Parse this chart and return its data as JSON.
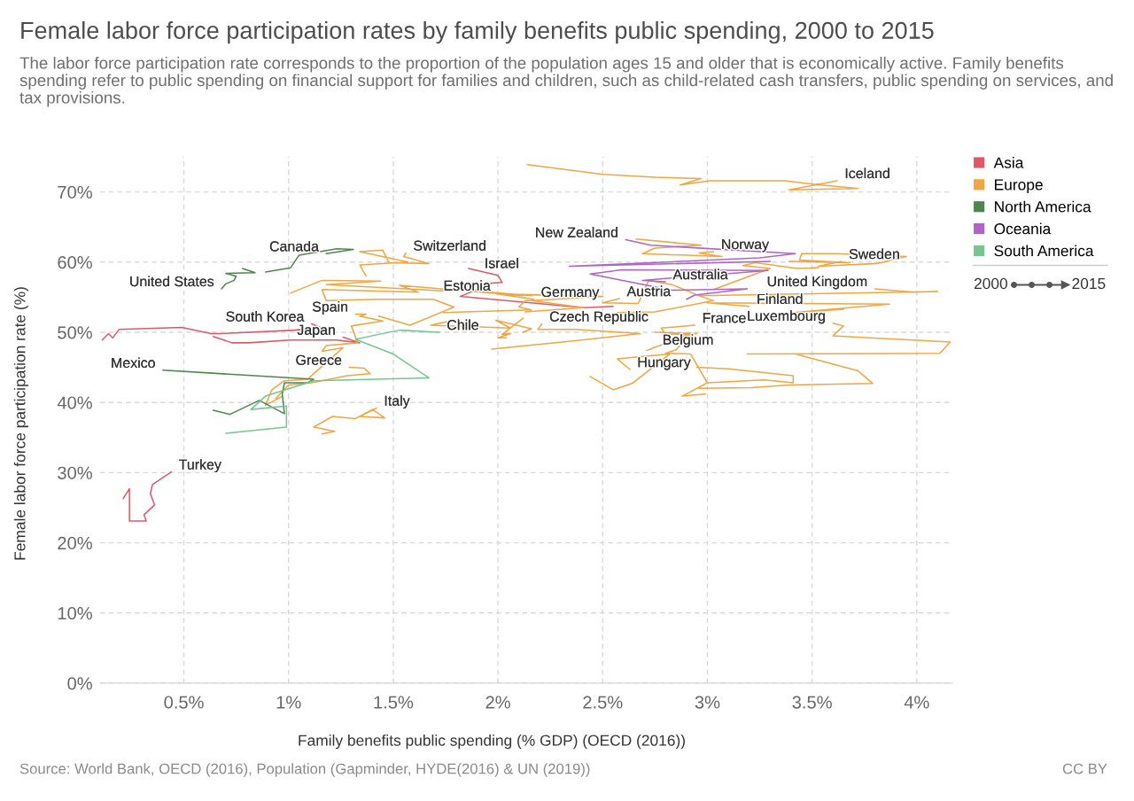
{
  "chart_data": {
    "type": "line",
    "title": "Female labor force participation rates by family benefits public spending, 2000 to 2015",
    "subtitle": "The labor force participation rate corresponds to the proportion of the population ages 15 and older that is economically active. Family benefits spending refer to public spending on financial support for families and children, such as child-related cash transfers, public spending on services, and tax provisions.",
    "xlabel": "Family benefits public spending (% GDP) (OECD (2016))",
    "ylabel": "Female labor force participation rate (%)",
    "xlim": [
      0.1,
      4.17
    ],
    "ylim": [
      0,
      75
    ],
    "xticks": [
      {
        "value": 0.5,
        "label": "0.5%"
      },
      {
        "value": 1,
        "label": "1%"
      },
      {
        "value": 1.5,
        "label": "1.5%"
      },
      {
        "value": 2,
        "label": "2%"
      },
      {
        "value": 2.5,
        "label": "2.5%"
      },
      {
        "value": 3,
        "label": "3%"
      },
      {
        "value": 3.5,
        "label": "3.5%"
      },
      {
        "value": 4,
        "label": "4%"
      }
    ],
    "yticks": [
      {
        "value": 0,
        "label": "0%"
      },
      {
        "value": 10,
        "label": "10%"
      },
      {
        "value": 20,
        "label": "20%"
      },
      {
        "value": 30,
        "label": "30%"
      },
      {
        "value": 40,
        "label": "40%"
      },
      {
        "value": 50,
        "label": "50%"
      },
      {
        "value": 60,
        "label": "60%"
      },
      {
        "value": 70,
        "label": "70%"
      }
    ],
    "grid": true,
    "legend": "top right",
    "series": [
      {
        "name": "Asia",
        "color": "#dc5a68",
        "x": [
          0.21,
          0.24,
          0.24,
          0.32,
          0.31,
          0.36,
          0.34,
          0.35,
          0.44,
          null,
          0.11,
          0.14,
          0.16,
          0.19,
          0.49,
          0.63,
          0.67,
          1.03,
          1.15,
          1.11,
          null,
          0.64,
          0.73,
          0.81,
          1.01,
          1.23,
          1.34,
          1.26,
          null,
          2.55,
          2.41,
          1.82,
          1.97,
          2.02,
          2.0,
          1.86,
          1.9
        ],
        "values": [
          26.3,
          27.7,
          23.1,
          23.1,
          24.0,
          25.4,
          27.0,
          28.3,
          30.1,
          null,
          48.9,
          49.8,
          49.2,
          50.4,
          50.7,
          49.8,
          49.8,
          50.3,
          50.7,
          51.2,
          null,
          49.4,
          48.5,
          48.5,
          48.9,
          48.9,
          48.5,
          49.3,
          null,
          53.7,
          53.5,
          55.1,
          57.0,
          57.1,
          58.1,
          59.1,
          58.8
        ]
      },
      {
        "name": "Europe",
        "color": "#f0a642",
        "x": [
          2.14,
          2.5,
          2.75,
          2.97,
          2.87,
          3.01,
          3.37,
          3.51,
          3.72,
          3.39,
          3.62,
          null,
          1.37,
          1.34,
          1.57,
          1.34,
          1.45,
          1.48,
          1.67,
          1.55,
          1.56,
          null,
          2.66,
          2.97,
          2.75,
          2.69,
          3.07,
          2.96,
          3.03,
          null,
          3.39,
          3.68,
          3.44,
          3.45,
          3.62,
          3.95,
          3.81,
          3.53,
          3.64,
          null,
          2.96,
          4.1,
          3.98,
          3.8,
          null,
          3.65,
          3.41,
          3.87,
          3.0,
          3.2,
          null,
          1.43,
          1.58,
          1.79,
          1.69,
          1.43,
          1.18,
          1.16,
          1.62,
          1.53,
          2.12,
          2.0,
          null,
          2.13,
          2.41,
          2.16,
          2.5,
          1.99,
          2.17,
          null,
          2.57,
          2.75,
          3.03,
          2.97,
          2.83,
          2.72,
          2.67,
          2.5,
          2.58,
          null,
          0.97,
          0.89,
          0.92,
          0.98,
          1.09,
          1.26,
          1.16,
          1.18,
          1.33,
          1.3,
          1.45,
          1.34,
          1.37,
          1.32,
          null,
          0.94,
          1.0,
          1.11,
          1.28,
          1.39,
          1.36,
          1.29,
          null,
          1.16,
          1.22,
          1.12,
          1.21,
          1.32,
          1.4,
          1.46,
          1.34,
          1.42,
          null,
          1.97,
          2.37,
          2.68,
          2.37,
          2.19,
          2.21,
          null,
          2.75,
          2.95,
          2.8,
          2.78,
          2.94,
          null,
          2.99,
          2.88,
          3.0,
          2.92,
          2.8,
          2.85,
          2.92,
          2.71,
          2.75,
          null,
          2.44,
          2.55,
          2.64,
          2.82,
          2.57,
          2.63,
          null,
          2.96,
          3.21,
          3.39,
          3.79,
          3.72,
          3.42,
          3.19,
          4.11,
          4.16,
          3.6,
          3.65,
          3.6,
          null,
          3.0,
          3.27,
          3.41,
          3.41,
          3.1,
          2.95,
          null,
          1.74,
          2.16,
          2.1,
          2.13,
          2.17,
          null,
          1.77,
          1.68,
          2.06,
          1.99,
          2.16,
          2.12,
          null,
          2.04,
          2.0,
          2.06,
          2.02,
          2.12,
          null,
          1.01,
          1.16,
          1.44,
          1.18,
          1.74,
          1.82,
          2.16,
          null,
          3.03,
          3.3,
          3.17,
          3.23,
          3.43,
          3.53
        ],
        "values": [
          73.9,
          72.5,
          72.1,
          71.9,
          71.0,
          71.6,
          71.6,
          71.1,
          70.5,
          70.3,
          71.6,
          null,
          58.0,
          59.6,
          60.0,
          61.5,
          61.7,
          59.9,
          59.8,
          60.8,
          61.3,
          null,
          63.3,
          62.4,
          62.0,
          61.2,
          60.8,
          61.3,
          61.5,
          null,
          60.1,
          59.9,
          60.3,
          61.2,
          61.2,
          60.8,
          59.8,
          59.4,
          60.1,
          null,
          55.2,
          55.8,
          55.7,
          56.2,
          null,
          53.3,
          52.8,
          54.0,
          54.2,
          53.7,
          null,
          52.3,
          51.0,
          53.6,
          54.7,
          54.7,
          54.5,
          56.1,
          55.7,
          56.7,
          55.2,
          55.6,
          null,
          52.9,
          53.5,
          54.5,
          55.1,
          55.5,
          54.7,
          null,
          52.8,
          52.9,
          54.5,
          55.1,
          56.8,
          57.4,
          54.1,
          54.2,
          54.8,
          null,
          40.9,
          39.6,
          41.8,
          43.1,
          43.3,
          47.8,
          47.3,
          48.1,
          48.5,
          50.9,
          51.6,
          52.3,
          52.6,
          52.6,
          null,
          40.6,
          42.5,
          42.8,
          43.8,
          44.1,
          44.9,
          45.0,
          null,
          35.5,
          35.9,
          36.5,
          38.0,
          37.7,
          39.0,
          37.8,
          38.0,
          39.2,
          null,
          47.6,
          48.8,
          49.8,
          50.4,
          50.4,
          51.2,
          null,
          50.0,
          49.8,
          49.7,
          50.6,
          51.0,
          null,
          41.2,
          40.9,
          42.8,
          46.9,
          47.0,
          47.5,
          49.8,
          47.4,
          47.9,
          null,
          43.7,
          41.8,
          42.7,
          46.9,
          46.2,
          44.7,
          null,
          42.0,
          42.1,
          42.5,
          42.7,
          44.5,
          46.9,
          46.9,
          47.0,
          48.6,
          49.5,
          50.9,
          51.3,
          null,
          42.8,
          43.2,
          42.8,
          43.8,
          44.8,
          45.0,
          null,
          52.8,
          53.2,
          53.6,
          54.5,
          54.5,
          null,
          51.6,
          51.0,
          50.6,
          51.7,
          50.5,
          50.0,
          null,
          49.2,
          49.2,
          49.8,
          49.7,
          52.0,
          null,
          55.6,
          57.4,
          57.3,
          56.8,
          55.9,
          56.1,
          55.2,
          null,
          56.1,
          59.1,
          59.5,
          59.9,
          59.1,
          59.2
        ]
      },
      {
        "name": "North America",
        "color": "#4f8650",
        "x": [
          0.78,
          0.84,
          0.7,
          0.75,
          0.74,
          0.7,
          0.68,
          null,
          0.89,
          1.01,
          1.05,
          1.23,
          1.31,
          1.18,
          null,
          0.64,
          0.72,
          0.86,
          0.98,
          0.97,
          0.98,
          1.09,
          1.12,
          0.4
        ],
        "values": [
          59.1,
          58.5,
          58.4,
          58.0,
          57.4,
          56.9,
          56.2,
          null,
          58.6,
          59.2,
          61.0,
          61.9,
          61.8,
          61.2,
          null,
          38.9,
          38.3,
          40.3,
          38.4,
          41.2,
          42.8,
          42.8,
          43.3,
          44.6
        ]
      },
      {
        "name": "Oceania",
        "color": "#b064c6",
        "x": [
          3.3,
          2.34,
          3.25,
          3.42,
          2.73,
          2.61,
          null,
          2.9,
          2.94,
          3.19,
          2.83,
          2.44,
          2.59,
          3.29,
          2.69,
          2.8
        ],
        "values": [
          60.1,
          59.4,
          60.6,
          61.2,
          62.4,
          63.2,
          null,
          54.7,
          55.3,
          56.2,
          56.0,
          58.3,
          58.9,
          58.8,
          57.4,
          57.2
        ]
      },
      {
        "name": "South America",
        "color": "#74c693",
        "x": [
          0.7,
          0.99,
          0.99,
          0.82,
          0.89,
          1.12,
          1.67,
          1.5,
          1.32,
          1.43,
          1.53,
          1.72
        ],
        "values": [
          35.6,
          36.5,
          39.5,
          39.0,
          40.9,
          43.1,
          43.5,
          46.9,
          49.0,
          49.7,
          50.3,
          50.0
        ]
      }
    ],
    "annotations": [
      {
        "text": "Iceland",
        "x": 3.62,
        "y": 71.6
      },
      {
        "text": "Switzerland",
        "x": 1.56,
        "y": 61.3
      },
      {
        "text": "New Zealand",
        "x": 2.61,
        "y": 63.2
      },
      {
        "text": "Norway",
        "x": 3.03,
        "y": 61.5
      },
      {
        "text": "Israel",
        "x": 1.9,
        "y": 58.8
      },
      {
        "text": "Sweden",
        "x": 3.64,
        "y": 60.1
      },
      {
        "text": "Canada",
        "x": 1.18,
        "y": 61.2
      },
      {
        "text": "Australia",
        "x": 2.8,
        "y": 57.2
      },
      {
        "text": "United Kingdom",
        "x": 3.8,
        "y": 56.2
      },
      {
        "text": "Estonia",
        "x": 2.0,
        "y": 55.6
      },
      {
        "text": "Germany",
        "x": 2.17,
        "y": 54.7
      },
      {
        "text": "Austria",
        "x": 2.58,
        "y": 54.8
      },
      {
        "text": "Finland",
        "x": 3.2,
        "y": 53.7
      },
      {
        "text": "United States",
        "x": 0.68,
        "y": 56.2
      },
      {
        "text": "South Korea",
        "x": 1.11,
        "y": 51.2
      },
      {
        "text": "Spain",
        "x": 1.32,
        "y": 52.6
      },
      {
        "text": "Czech Republic",
        "x": 2.21,
        "y": 51.2
      },
      {
        "text": "France",
        "x": 2.94,
        "y": 51.0
      },
      {
        "text": "Luxembourg",
        "x": 3.6,
        "y": 51.3
      },
      {
        "text": "Japan",
        "x": 1.26,
        "y": 49.3
      },
      {
        "text": "Chile",
        "x": 1.72,
        "y": 50.0
      },
      {
        "text": "Belgium",
        "x": 2.75,
        "y": 47.9
      },
      {
        "text": "Hungary",
        "x": 2.63,
        "y": 44.7
      },
      {
        "text": "Mexico",
        "x": 0.4,
        "y": 44.6
      },
      {
        "text": "Greece",
        "x": 1.29,
        "y": 45.0
      },
      {
        "text": "Italy",
        "x": 1.42,
        "y": 39.2
      },
      {
        "text": "Turkey",
        "x": 0.44,
        "y": 30.1
      },
      "2000",
      "2015",
      "Source: World Bank, OECD (2016), Population (Gapminder, HYDE(2016) & UN (2019))",
      "CC BY"
    ]
  }
}
